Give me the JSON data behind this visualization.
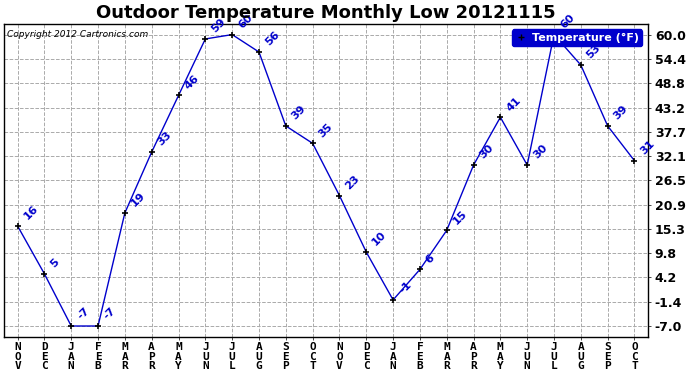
{
  "title": "Outdoor Temperature Monthly Low 20121115",
  "copyright": "Copyright 2012 Cartronics.com",
  "legend_label": "Temperature (°F)",
  "months": [
    "NOV",
    "DEC",
    "JAN",
    "FEB",
    "MAR",
    "APR",
    "MAY",
    "JUN",
    "JUL",
    "AUG",
    "SEP",
    "OCT",
    "NOV",
    "DEC",
    "JAN",
    "FEB",
    "MAR",
    "APR",
    "MAY",
    "JUN",
    "JUL",
    "AUG",
    "SEP",
    "OCT"
  ],
  "values": [
    16,
    5,
    -7,
    -7,
    19,
    33,
    46,
    59,
    60,
    56,
    39,
    35,
    23,
    10,
    -1,
    6,
    15,
    30,
    41,
    30,
    60,
    53,
    39,
    31
  ],
  "ytick_values": [
    -7.0,
    -1.4,
    4.2,
    9.8,
    15.3,
    20.9,
    26.5,
    32.1,
    37.7,
    43.2,
    48.8,
    54.4,
    60.0
  ],
  "ytick_labels": [
    "-7.0",
    "-1.4",
    "4.2",
    "9.8",
    "15.3",
    "20.9",
    "26.5",
    "32.1",
    "37.7",
    "43.2",
    "48.8",
    "54.4",
    "60.0"
  ],
  "ylim": [
    -9.5,
    62.5
  ],
  "line_color": "#0000cc",
  "marker_color": "black",
  "grid_color": "#aaaaaa",
  "bg_color": "white",
  "plot_bg": "white",
  "title_fontsize": 13,
  "xlabel_fontsize": 8,
  "ylabel_fontsize": 9,
  "annot_fontsize": 8,
  "legend_bg": "#0000cc",
  "legend_fg": "white",
  "border_color": "black"
}
